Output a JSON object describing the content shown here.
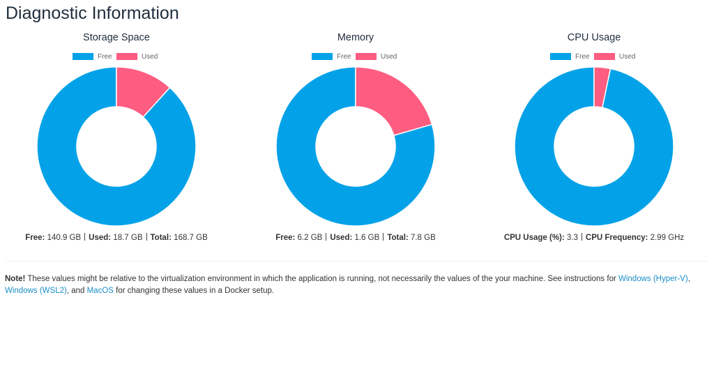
{
  "page": {
    "title": "Diagnostic Information",
    "stats": [
      [
        {
          "label": "Free:",
          "text": "140.9 GB"
        },
        {
          "label": "Used:",
          "text": "18.7 GB"
        },
        {
          "label": "Total:",
          "text": "168.7 GB"
        }
      ],
      [
        {
          "label": "Free:",
          "text": "6.2 GB"
        },
        {
          "label": "Used:",
          "text": "1.6 GB"
        },
        {
          "label": "Total:",
          "text": "7.8 GB"
        }
      ],
      [
        {
          "label": "CPU Usage (%):",
          "text": "3.3"
        },
        {
          "label": "CPU Frequency:",
          "text": "2.99 GHz"
        }
      ]
    ],
    "note": [
      {
        "text": "Note!",
        "bold": true
      },
      {
        "text": " These values might be relative to the virtualization environment in which the application is running, not necessarily the values of the your machine. See instructions for "
      },
      {
        "text": "Windows (Hyper-V)",
        "link": true
      },
      {
        "text": ", "
      },
      {
        "text": "Windows (WSL2)",
        "link": true
      },
      {
        "text": ", and "
      },
      {
        "text": "MacOS",
        "link": true
      },
      {
        "text": " for changing these values in a Docker setup."
      }
    ]
  },
  "chart_data": [
    {
      "type": "doughnut",
      "title": "Storage Space",
      "categories": [
        "Free",
        "Used"
      ],
      "values": [
        140.9,
        18.7
      ],
      "colors": [
        "#03a2e8",
        "#fe5c80"
      ],
      "legend": "top"
    },
    {
      "type": "doughnut",
      "title": "Memory",
      "categories": [
        "Free",
        "Used"
      ],
      "values": [
        6.2,
        1.6
      ],
      "colors": [
        "#03a2e8",
        "#fe5c80"
      ],
      "legend": "top"
    },
    {
      "type": "doughnut",
      "title": "CPU Usage",
      "categories": [
        "Free",
        "Used"
      ],
      "values": [
        96.7,
        3.3
      ],
      "colors": [
        "#03a2e8",
        "#fe5c80"
      ],
      "legend": "top"
    }
  ]
}
